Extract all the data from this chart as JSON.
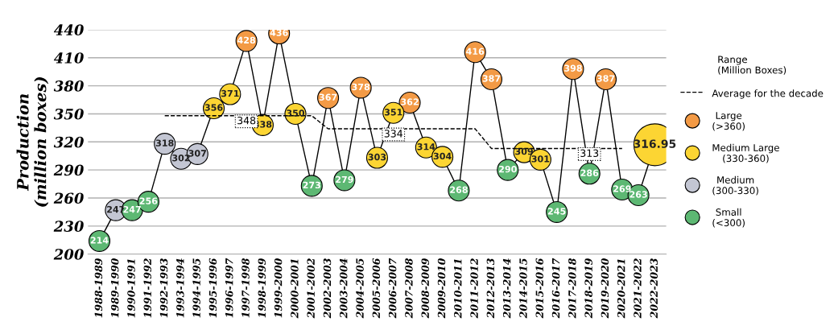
{
  "chart_data": {
    "type": "line",
    "ylabel": "Production\n(million boxes)",
    "legend_title": "Range\n(Million Boxes)",
    "categories": [
      "1988-1989",
      "1989-1990",
      "1990-1991",
      "1991-1992",
      "1992-1993",
      "1993-1994",
      "1994-1995",
      "1995-1996",
      "1996-1997",
      "1997-1998",
      "1998-1999",
      "1999-2000",
      "2000-2001",
      "2001-2002",
      "2002-2003",
      "2003-2004",
      "2004-2005",
      "2005-2006",
      "2006-2007",
      "2007-2008",
      "2008-2009",
      "2009-2010",
      "2010-2011",
      "2011-2012",
      "2012-2013",
      "2013-2014",
      "2014-2015",
      "2015-2016",
      "2016-2017",
      "2017-2018",
      "2018-2019",
      "2019-2020",
      "2020-2021",
      "2021-2022",
      "2022-2023"
    ],
    "ylim": [
      200,
      440
    ],
    "yticks": [
      200,
      230,
      260,
      290,
      320,
      350,
      380,
      410,
      440
    ],
    "grid": "y",
    "legend": "right",
    "series": [
      {
        "color": "#000000",
        "marker": "none",
        "line_style": "solid",
        "values": [
          214,
          247,
          247,
          256,
          318,
          302,
          307,
          356,
          371,
          428,
          338,
          436,
          350,
          273,
          367,
          279,
          378,
          303,
          351,
          362,
          314,
          304,
          268,
          416,
          387,
          290,
          309,
          301,
          245,
          398,
          286,
          387,
          269,
          263,
          316.95
        ]
      },
      {
        "type": "line",
        "name": "Average for the decade",
        "color": "#000000",
        "marker": "none",
        "line_style": "dashed",
        "values": [
          null,
          null,
          null,
          null,
          348,
          348,
          348,
          348,
          348,
          348,
          348,
          348,
          348,
          348,
          334,
          334,
          334,
          334,
          334,
          334,
          334,
          334,
          334,
          334,
          313,
          313,
          313,
          313,
          313,
          313,
          313,
          313,
          313,
          null,
          null
        ],
        "value_labels": [
          null,
          null,
          null,
          null,
          null,
          null,
          null,
          null,
          null,
          "348",
          null,
          null,
          null,
          null,
          null,
          null,
          null,
          null,
          "334",
          null,
          null,
          null,
          null,
          null,
          null,
          null,
          null,
          null,
          null,
          null,
          "313",
          null,
          null,
          null,
          null
        ]
      },
      {
        "type": "bubble",
        "name": "Large\n(>360)",
        "color": "#f39a45",
        "values": [
          null,
          null,
          null,
          null,
          null,
          null,
          null,
          null,
          null,
          428,
          null,
          436,
          null,
          null,
          367,
          null,
          378,
          null,
          null,
          362,
          null,
          null,
          null,
          416,
          387,
          null,
          null,
          null,
          null,
          398,
          null,
          387,
          null,
          null,
          null
        ],
        "value_labels": [
          null,
          null,
          null,
          null,
          null,
          null,
          null,
          null,
          null,
          "428",
          null,
          "436",
          null,
          null,
          "367",
          null,
          "378",
          null,
          null,
          "362",
          null,
          null,
          null,
          "416",
          "387",
          null,
          null,
          null,
          null,
          "398",
          null,
          "387",
          null,
          null,
          null
        ],
        "sizes": [
          null,
          null,
          null,
          null,
          null,
          null,
          null,
          null,
          null,
          0.25,
          null,
          0.25,
          null,
          null,
          0.25,
          null,
          0.25,
          null,
          null,
          0.25,
          null,
          null,
          null,
          0.25,
          0.25,
          null,
          null,
          null,
          null,
          0.25,
          null,
          0.25,
          null,
          null,
          null
        ]
      },
      {
        "type": "bubble",
        "name": "Medium Large\n(330-360)",
        "color": "#fcd533",
        "values": [
          null,
          null,
          null,
          null,
          null,
          null,
          null,
          356,
          371,
          null,
          338,
          null,
          350,
          null,
          null,
          null,
          null,
          303,
          351,
          null,
          314,
          304,
          null,
          null,
          null,
          null,
          309,
          301,
          null,
          null,
          null,
          null,
          null,
          null,
          316.95
        ],
        "value_labels": [
          null,
          null,
          null,
          null,
          null,
          null,
          null,
          "356",
          "371",
          null,
          "338",
          null,
          "350",
          null,
          null,
          null,
          null,
          "303",
          "351",
          null,
          "314",
          "304",
          null,
          null,
          null,
          null,
          "309",
          "301",
          null,
          null,
          null,
          null,
          null,
          null,
          "316.95"
        ],
        "sizes": [
          null,
          null,
          null,
          null,
          null,
          null,
          null,
          0.25,
          0.25,
          null,
          0.25,
          null,
          0.25,
          null,
          null,
          null,
          null,
          0.25,
          0.25,
          null,
          0.25,
          0.25,
          null,
          null,
          null,
          null,
          0.25,
          0.25,
          null,
          null,
          null,
          null,
          null,
          null,
          1
        ]
      },
      {
        "type": "bubble",
        "name": "Medium\n(300-330)",
        "color": "#c3c6d3",
        "values": [
          null,
          247,
          null,
          null,
          318,
          302,
          307,
          null,
          null,
          null,
          null,
          null,
          null,
          null,
          null,
          null,
          null,
          null,
          null,
          null,
          null,
          null,
          null,
          null,
          null,
          null,
          null,
          null,
          null,
          null,
          null,
          null,
          null,
          null,
          null
        ],
        "value_labels": [
          null,
          "247",
          null,
          null,
          "318",
          "302",
          "307",
          null,
          null,
          null,
          null,
          null,
          null,
          null,
          null,
          null,
          null,
          null,
          null,
          null,
          null,
          null,
          null,
          null,
          null,
          null,
          null,
          null,
          null,
          null,
          null,
          null,
          null,
          null,
          null
        ],
        "sizes": [
          null,
          0.25,
          null,
          null,
          0.25,
          0.25,
          0.25,
          null,
          null,
          null,
          null,
          null,
          null,
          null,
          null,
          null,
          null,
          null,
          null,
          null,
          null,
          null,
          null,
          null,
          null,
          null,
          null,
          null,
          null,
          null,
          null,
          null,
          null,
          null,
          null
        ]
      },
      {
        "type": "bubble",
        "name": "Small\n(<300)",
        "color": "#5db873",
        "values": [
          214,
          null,
          247,
          256,
          null,
          null,
          null,
          null,
          null,
          null,
          null,
          null,
          null,
          273,
          null,
          279,
          null,
          null,
          null,
          null,
          null,
          null,
          268,
          null,
          null,
          290,
          null,
          null,
          245,
          null,
          286,
          null,
          269,
          263,
          null
        ],
        "value_labels": [
          "214",
          null,
          "247",
          "256",
          null,
          null,
          null,
          null,
          null,
          null,
          null,
          null,
          null,
          "273",
          null,
          "279",
          null,
          null,
          null,
          null,
          null,
          null,
          "268",
          null,
          null,
          "290",
          null,
          null,
          "245",
          null,
          "286",
          null,
          "269",
          "263",
          null
        ],
        "sizes": [
          0.25,
          null,
          0.25,
          0.25,
          null,
          null,
          null,
          null,
          null,
          null,
          null,
          null,
          null,
          0.25,
          null,
          0.25,
          null,
          null,
          null,
          null,
          null,
          null,
          0.25,
          null,
          null,
          0.25,
          null,
          null,
          0.25,
          null,
          0.25,
          null,
          0.25,
          0.25,
          null
        ]
      }
    ]
  }
}
